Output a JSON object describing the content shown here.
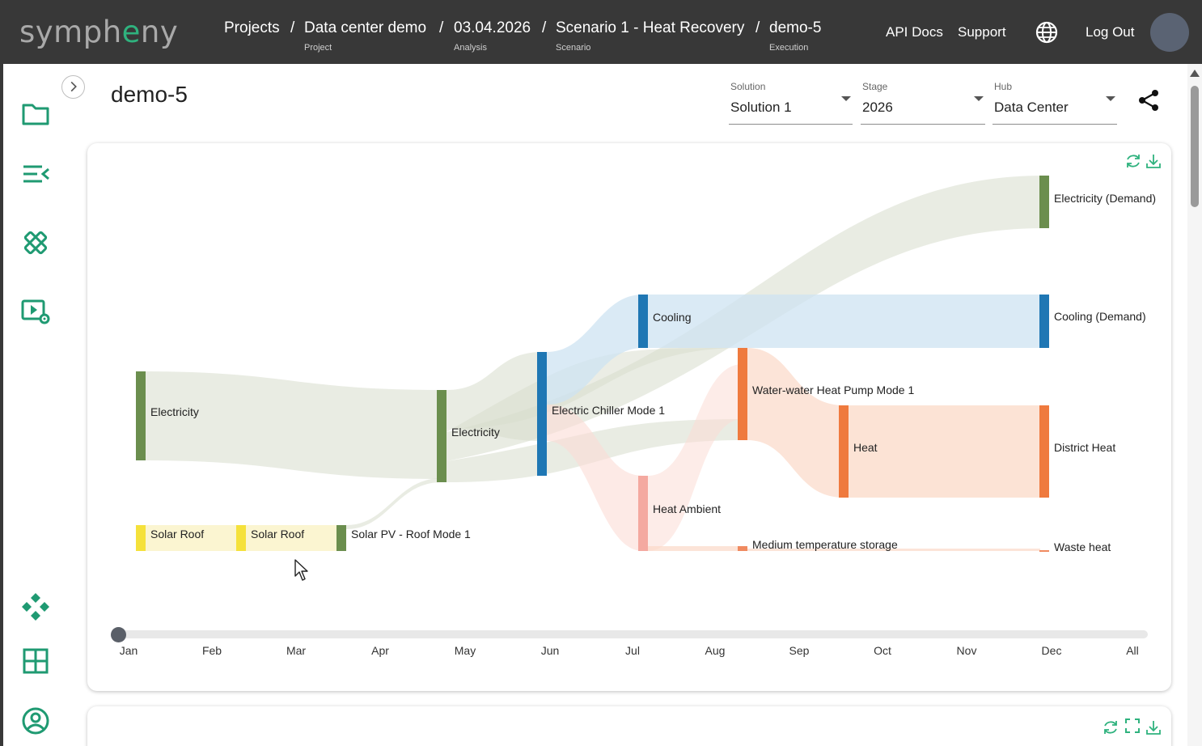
{
  "header": {
    "logo_pre": "symph",
    "logo_accent": "e",
    "logo_post": "ny",
    "breadcrumbs": [
      {
        "label": "Projects",
        "sub": ""
      },
      {
        "label": "Data center demo",
        "sub": "Project"
      },
      {
        "label": "03.04.2026",
        "sub": "Analysis"
      },
      {
        "label": "Scenario 1 - Heat Recovery",
        "sub": "Scenario"
      },
      {
        "label": "demo-5",
        "sub": "Execution"
      }
    ],
    "separator": "/",
    "api_docs": "API Docs",
    "support": "Support",
    "logout": "Log Out"
  },
  "page": {
    "title": "demo-5",
    "selects": [
      {
        "label": "Solution",
        "value": "Solution 1"
      },
      {
        "label": "Stage",
        "value": "2026"
      },
      {
        "label": "Hub",
        "value": "Data Center"
      }
    ]
  },
  "sidebar": {
    "icons": [
      "folder-icon",
      "menu-collapse-icon",
      "tools-icon",
      "video-settings-icon",
      "network-icon",
      "grid-icon",
      "account-icon"
    ]
  },
  "chart_data": {
    "type": "sankey",
    "nodes": [
      {
        "id": "elec1",
        "label": "Electricity",
        "color": "#6b8e4e"
      },
      {
        "id": "solar1",
        "label": "Solar Roof",
        "color": "#f5e13b"
      },
      {
        "id": "solar2",
        "label": "Solar Roof",
        "color": "#f5e13b"
      },
      {
        "id": "pv",
        "label": "Solar PV - Roof Mode 1",
        "color": "#6b8e4e"
      },
      {
        "id": "elec2",
        "label": "Electricity",
        "color": "#6b8e4e"
      },
      {
        "id": "chiller",
        "label": "Electric Chiller Mode 1",
        "color": "#1f77b4"
      },
      {
        "id": "cooling",
        "label": "Cooling",
        "color": "#1f77b4"
      },
      {
        "id": "ambient",
        "label": "Heat Ambient",
        "color": "#f4a9a0"
      },
      {
        "id": "hp",
        "label": "Water-water Heat Pump Mode 1",
        "color": "#ef7a3e"
      },
      {
        "id": "mts",
        "label": "Medium temperature storage",
        "color": "#f08a60"
      },
      {
        "id": "heat",
        "label": "Heat",
        "color": "#ef7a3e"
      },
      {
        "id": "elecDemand",
        "label": "Electricity (Demand)",
        "color": "#6b8e4e"
      },
      {
        "id": "coolDemand",
        "label": "Cooling (Demand)",
        "color": "#1f77b4"
      },
      {
        "id": "district",
        "label": "District Heat",
        "color": "#ef7a3e"
      },
      {
        "id": "waste",
        "label": "Waste heat",
        "color": "#f08a60"
      }
    ],
    "timeline": {
      "labels": [
        "Jan",
        "Feb",
        "Mar",
        "Apr",
        "May",
        "Jun",
        "Jul",
        "Aug",
        "Sep",
        "Oct",
        "Nov",
        "Dec",
        "All"
      ],
      "selected": "Jan"
    }
  }
}
